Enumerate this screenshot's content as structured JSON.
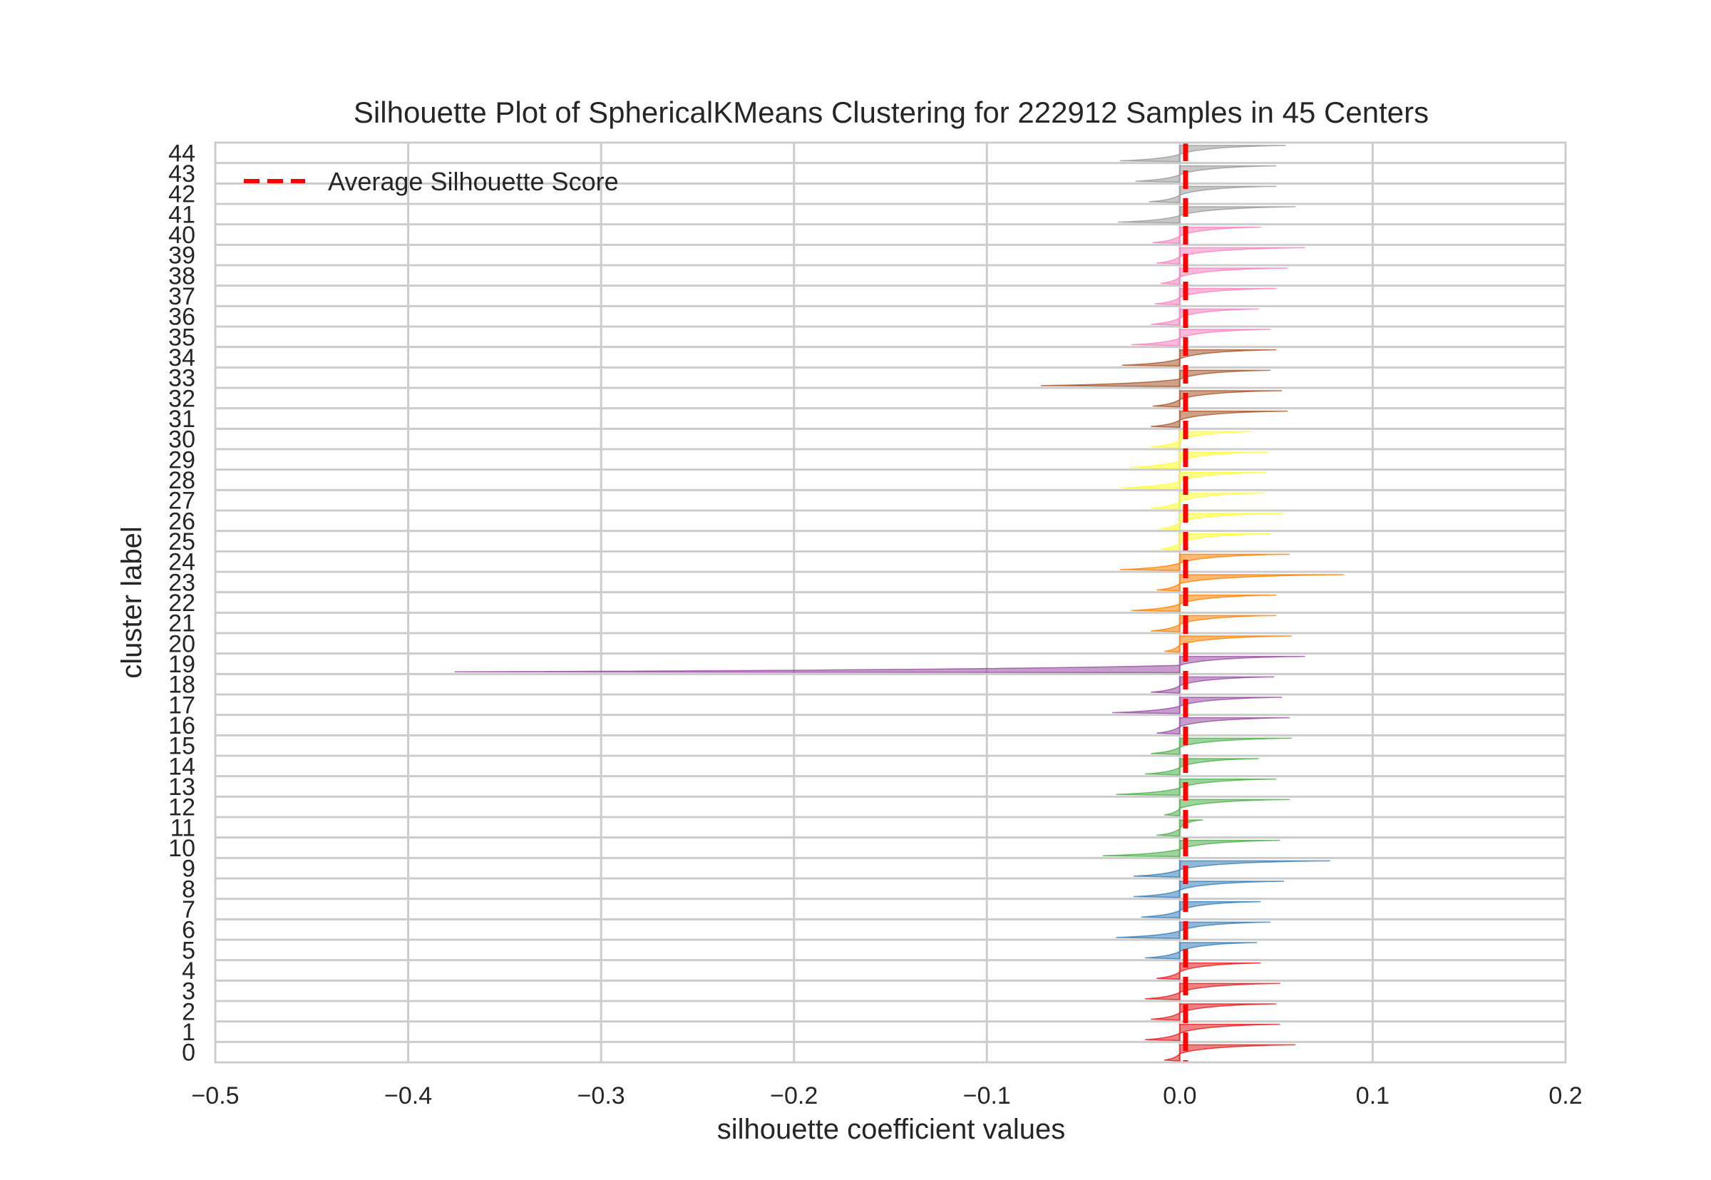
{
  "chart_data": {
    "type": "area",
    "title": "Silhouette Plot of SphericalKMeans Clustering for 222912 Samples in 45 Centers",
    "xlabel": "silhouette coefficient values",
    "ylabel": "cluster label",
    "xlim": [
      -0.5,
      0.2
    ],
    "xticks": [
      -0.5,
      -0.4,
      -0.3,
      -0.2,
      -0.1,
      0.0,
      0.1,
      0.2
    ],
    "xtick_labels": [
      "−0.5",
      "−0.4",
      "−0.3",
      "−0.2",
      "−0.1",
      "0.0",
      "0.1",
      "0.2"
    ],
    "ytick_labels": [
      "0",
      "1",
      "2",
      "3",
      "4",
      "5",
      "6",
      "7",
      "8",
      "9",
      "10",
      "11",
      "12",
      "13",
      "14",
      "15",
      "16",
      "17",
      "18",
      "19",
      "20",
      "21",
      "22",
      "23",
      "24",
      "25",
      "26",
      "27",
      "28",
      "29",
      "30",
      "31",
      "32",
      "33",
      "34",
      "35",
      "36",
      "37",
      "38",
      "39",
      "40",
      "41",
      "42",
      "43",
      "44"
    ],
    "average_silhouette_score": 0.003,
    "legend": {
      "label": "Average Silhouette Score",
      "location": "upper left",
      "color": "#ff0000"
    },
    "grid": true,
    "clusters": [
      {
        "label": "0",
        "min": -0.008,
        "max": 0.06,
        "color": "#e41a1c"
      },
      {
        "label": "1",
        "min": -0.018,
        "max": 0.052,
        "color": "#e41a1c"
      },
      {
        "label": "2",
        "min": -0.015,
        "max": 0.05,
        "color": "#e41a1c"
      },
      {
        "label": "3",
        "min": -0.018,
        "max": 0.052,
        "color": "#e41a1c"
      },
      {
        "label": "4",
        "min": -0.012,
        "max": 0.042,
        "color": "#e41a1c"
      },
      {
        "label": "5",
        "min": -0.018,
        "max": 0.04,
        "color": "#377eb8"
      },
      {
        "label": "6",
        "min": -0.033,
        "max": 0.047,
        "color": "#377eb8"
      },
      {
        "label": "7",
        "min": -0.02,
        "max": 0.042,
        "color": "#377eb8"
      },
      {
        "label": "8",
        "min": -0.024,
        "max": 0.054,
        "color": "#377eb8"
      },
      {
        "label": "9",
        "min": -0.024,
        "max": 0.078,
        "color": "#377eb8"
      },
      {
        "label": "10",
        "min": -0.04,
        "max": 0.052,
        "color": "#4daf4a"
      },
      {
        "label": "11",
        "min": -0.012,
        "max": 0.012,
        "color": "#4daf4a"
      },
      {
        "label": "12",
        "min": -0.008,
        "max": 0.057,
        "color": "#4daf4a"
      },
      {
        "label": "13",
        "min": -0.033,
        "max": 0.05,
        "color": "#4daf4a"
      },
      {
        "label": "14",
        "min": -0.018,
        "max": 0.041,
        "color": "#4daf4a"
      },
      {
        "label": "15",
        "min": -0.015,
        "max": 0.058,
        "color": "#4daf4a"
      },
      {
        "label": "16",
        "min": -0.012,
        "max": 0.057,
        "color": "#984ea3"
      },
      {
        "label": "17",
        "min": -0.035,
        "max": 0.053,
        "color": "#984ea3"
      },
      {
        "label": "18",
        "min": -0.015,
        "max": 0.049,
        "color": "#984ea3"
      },
      {
        "label": "19",
        "min": -0.376,
        "max": 0.065,
        "color": "#984ea3"
      },
      {
        "label": "20",
        "min": -0.008,
        "max": 0.058,
        "color": "#ff7f00"
      },
      {
        "label": "21",
        "min": -0.015,
        "max": 0.05,
        "color": "#ff7f00"
      },
      {
        "label": "22",
        "min": -0.025,
        "max": 0.05,
        "color": "#ff7f00"
      },
      {
        "label": "23",
        "min": -0.012,
        "max": 0.085,
        "color": "#ff7f00"
      },
      {
        "label": "24",
        "min": -0.031,
        "max": 0.057,
        "color": "#ff7f00"
      },
      {
        "label": "25",
        "min": -0.01,
        "max": 0.047,
        "color": "#ffff33"
      },
      {
        "label": "26",
        "min": -0.01,
        "max": 0.054,
        "color": "#ffff33"
      },
      {
        "label": "27",
        "min": -0.015,
        "max": 0.044,
        "color": "#ffff33"
      },
      {
        "label": "28",
        "min": -0.03,
        "max": 0.045,
        "color": "#ffff33"
      },
      {
        "label": "29",
        "min": -0.026,
        "max": 0.046,
        "color": "#ffff33"
      },
      {
        "label": "30",
        "min": -0.015,
        "max": 0.037,
        "color": "#ffff33"
      },
      {
        "label": "31",
        "min": -0.015,
        "max": 0.056,
        "color": "#a65628"
      },
      {
        "label": "32",
        "min": -0.014,
        "max": 0.053,
        "color": "#a65628"
      },
      {
        "label": "33",
        "min": -0.072,
        "max": 0.047,
        "color": "#a65628"
      },
      {
        "label": "34",
        "min": -0.03,
        "max": 0.05,
        "color": "#a65628"
      },
      {
        "label": "35",
        "min": -0.025,
        "max": 0.047,
        "color": "#f781bf"
      },
      {
        "label": "36",
        "min": -0.015,
        "max": 0.041,
        "color": "#f781bf"
      },
      {
        "label": "37",
        "min": -0.013,
        "max": 0.05,
        "color": "#f781bf"
      },
      {
        "label": "38",
        "min": -0.01,
        "max": 0.056,
        "color": "#f781bf"
      },
      {
        "label": "39",
        "min": -0.012,
        "max": 0.065,
        "color": "#f781bf"
      },
      {
        "label": "40",
        "min": -0.014,
        "max": 0.042,
        "color": "#f781bf"
      },
      {
        "label": "41",
        "min": -0.032,
        "max": 0.06,
        "color": "#999999"
      },
      {
        "label": "42",
        "min": -0.016,
        "max": 0.05,
        "color": "#999999"
      },
      {
        "label": "43",
        "min": -0.023,
        "max": 0.05,
        "color": "#999999"
      },
      {
        "label": "44",
        "min": -0.031,
        "max": 0.055,
        "color": "#999999"
      }
    ]
  }
}
